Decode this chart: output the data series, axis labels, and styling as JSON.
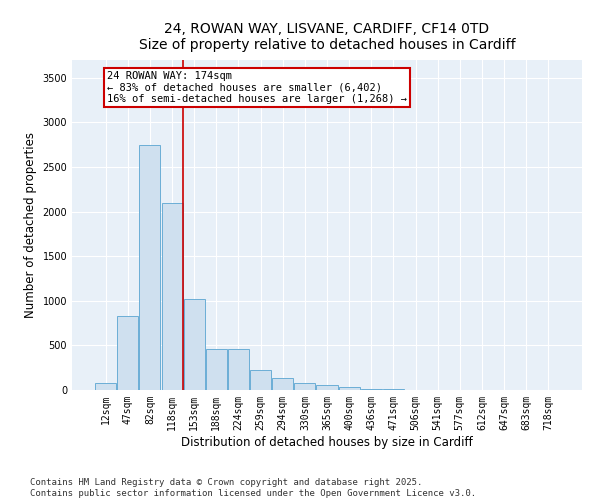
{
  "title_line1": "24, ROWAN WAY, LISVANE, CARDIFF, CF14 0TD",
  "title_line2": "Size of property relative to detached houses in Cardiff",
  "xlabel": "Distribution of detached houses by size in Cardiff",
  "ylabel": "Number of detached properties",
  "bar_labels": [
    "12sqm",
    "47sqm",
    "82sqm",
    "118sqm",
    "153sqm",
    "188sqm",
    "224sqm",
    "259sqm",
    "294sqm",
    "330sqm",
    "365sqm",
    "400sqm",
    "436sqm",
    "471sqm",
    "506sqm",
    "541sqm",
    "577sqm",
    "612sqm",
    "647sqm",
    "683sqm",
    "718sqm"
  ],
  "bar_values": [
    75,
    830,
    2750,
    2100,
    1020,
    460,
    460,
    220,
    140,
    75,
    60,
    30,
    15,
    8,
    5,
    3,
    2,
    1,
    1,
    0,
    0
  ],
  "bar_color": "#cfe0ef",
  "bar_edge_color": "#6baed6",
  "bar_edge_width": 0.7,
  "vline_color": "#cc0000",
  "vline_linewidth": 1.2,
  "vline_x": 3.5,
  "annotation_text_line1": "24 ROWAN WAY: 174sqm",
  "annotation_text_line2": "← 83% of detached houses are smaller (6,402)",
  "annotation_text_line3": "16% of semi-detached houses are larger (1,268) →",
  "box_edge_color": "#cc0000",
  "ylim": [
    0,
    3700
  ],
  "yticks": [
    0,
    500,
    1000,
    1500,
    2000,
    2500,
    3000,
    3500
  ],
  "footer_line1": "Contains HM Land Registry data © Crown copyright and database right 2025.",
  "footer_line2": "Contains public sector information licensed under the Open Government Licence v3.0.",
  "bg_color": "#ffffff",
  "plot_bg_color": "#e8f0f8",
  "grid_color": "#ffffff",
  "title_fontsize": 10,
  "axis_label_fontsize": 8.5,
  "tick_fontsize": 7,
  "footer_fontsize": 6.5,
  "annotation_fontsize": 7.5
}
